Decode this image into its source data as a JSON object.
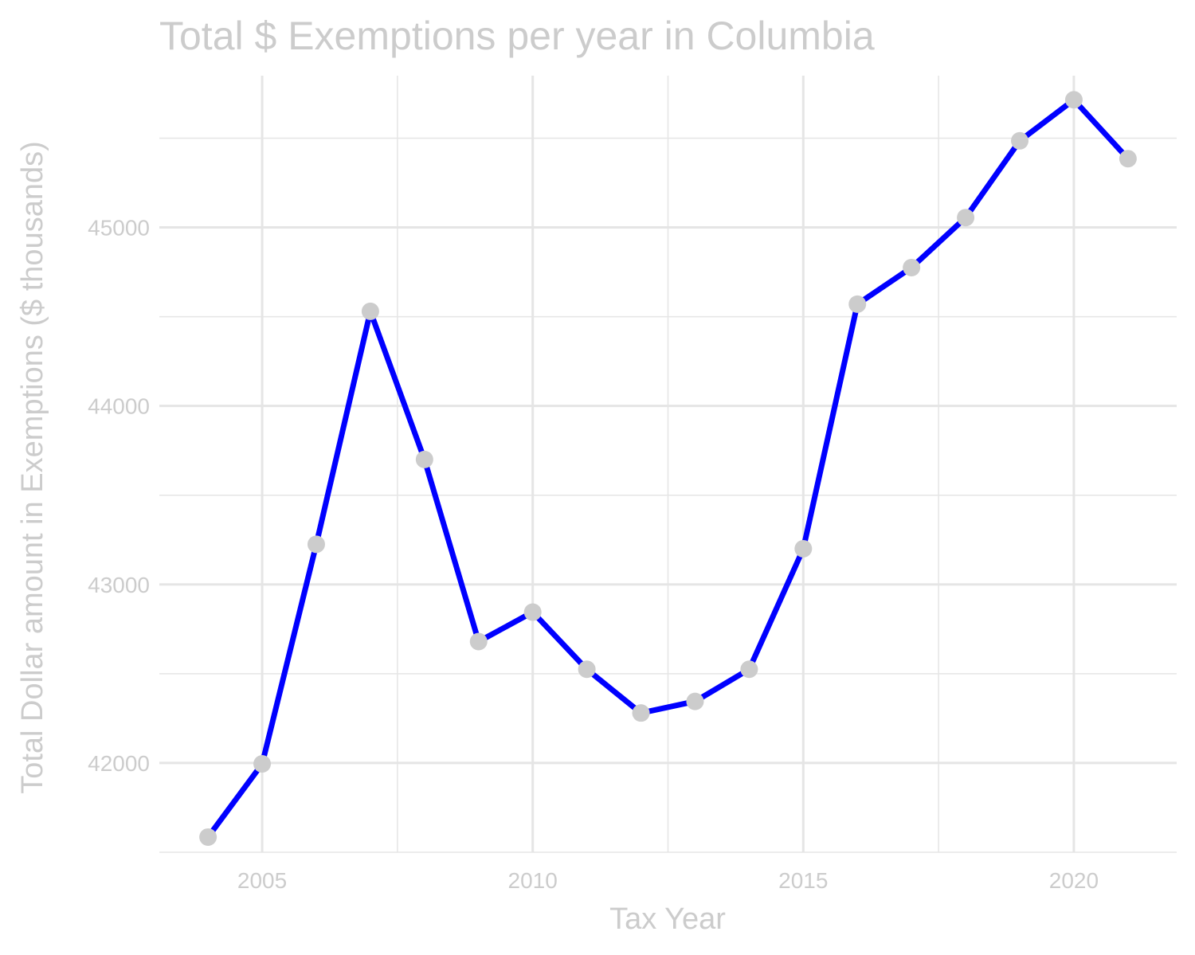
{
  "chart_data": {
    "type": "line",
    "title": "Total $ Exemptions per year in Columbia",
    "xlabel": "Tax Year",
    "ylabel": "Total Dollar amount in Exemptions ($ thousands)",
    "x": [
      2004,
      2005,
      2006,
      2007,
      2008,
      2009,
      2010,
      2011,
      2012,
      2013,
      2014,
      2015,
      2016,
      2017,
      2018,
      2019,
      2020,
      2021
    ],
    "series": [
      {
        "values": [
          41585,
          41995,
          43225,
          44530,
          43700,
          42680,
          42845,
          42525,
          42280,
          42345,
          42525,
          43200,
          44570,
          44775,
          45055,
          45485,
          45715,
          45385
        ]
      }
    ],
    "xticks": [
      "2005",
      "2010",
      "2015",
      "2020"
    ],
    "yticks": [
      "42000",
      "43000",
      "44000",
      "45000"
    ],
    "xlim": [
      2003.1,
      2021.9
    ],
    "ylim": [
      41500,
      45850
    ],
    "grid": true,
    "line_color": "#0000ff",
    "point_color": "#cccccc",
    "text_color": "#cccccc",
    "grid_color": "#e5e5e5"
  }
}
